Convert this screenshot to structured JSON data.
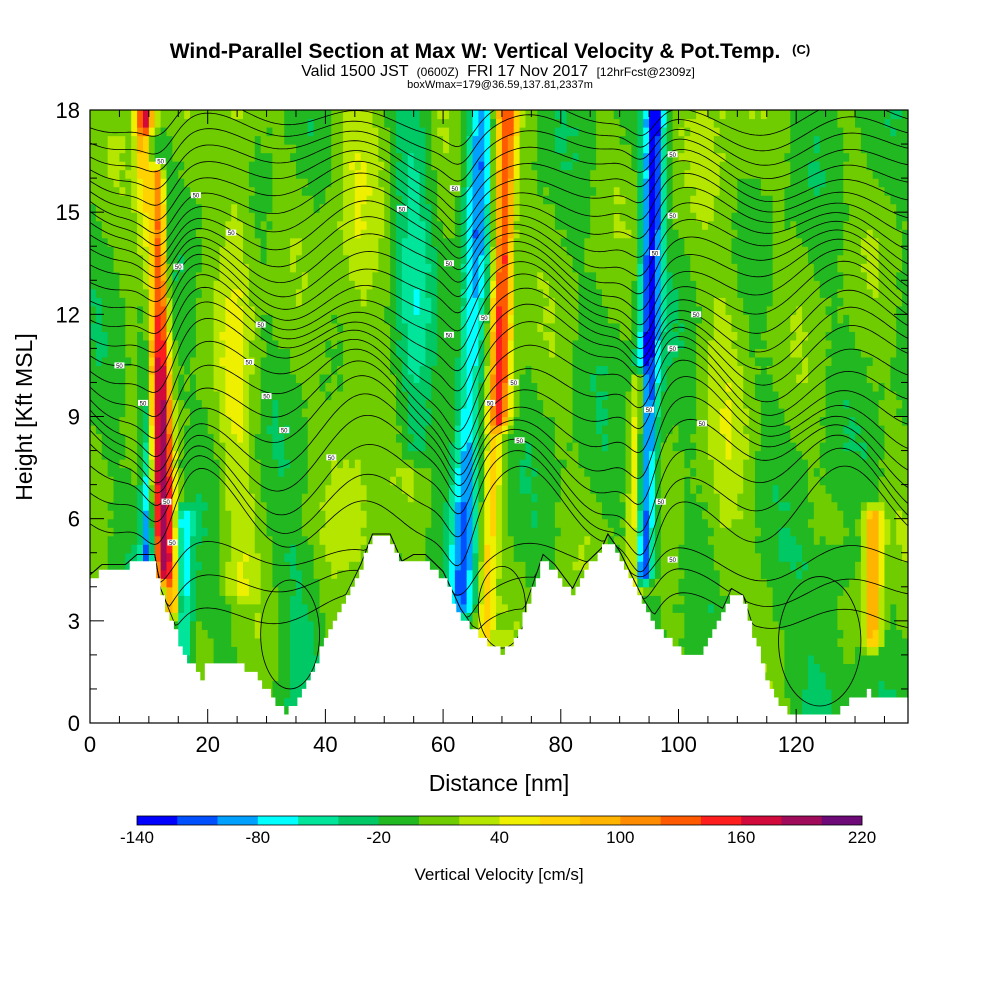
{
  "chart_data": {
    "type": "heatmap",
    "title": "Wind-Parallel Section at Max W: Vertical Velocity & Pot.Temp.",
    "title_tag": "(C)",
    "subtitle_prefix": "Valid 1500 JST",
    "subtitle_small_1": "(0600Z)",
    "subtitle_main": "FRI 17 Nov 2017",
    "subtitle_small_2": "[12hrFcst@2309z]",
    "subtitle2": "boxWmax=179@36.59,137.81,2337m",
    "xlabel": "Distance [nm]",
    "ylabel": "Height [Kft MSL]",
    "xlim": [
      0,
      139
    ],
    "ylim": [
      0,
      18
    ],
    "x_ticks": [
      "0",
      "20",
      "40",
      "60",
      "80",
      "100",
      "120"
    ],
    "x_tick_values": [
      0,
      20,
      40,
      60,
      80,
      100,
      120
    ],
    "y_ticks": [
      "0",
      "3",
      "6",
      "9",
      "12",
      "15",
      "18"
    ],
    "y_tick_values": [
      0,
      3,
      6,
      9,
      12,
      15,
      18
    ],
    "colorbar": {
      "title": "Vertical Velocity [cm/s]",
      "min": -140,
      "max": 220,
      "step": 20,
      "labels": [
        "-140",
        "-80",
        "-20",
        "40",
        "100",
        "160",
        "220"
      ],
      "label_values": [
        -140,
        -80,
        -20,
        40,
        100,
        160,
        220
      ],
      "colors": [
        "#0000ff",
        "#0050ff",
        "#00a0ff",
        "#00ffff",
        "#00e59a",
        "#00c864",
        "#22b822",
        "#6ecc00",
        "#b4e600",
        "#eef000",
        "#ffd200",
        "#ffb400",
        "#ff8c00",
        "#ff5a00",
        "#ff1e1e",
        "#d20a3c",
        "#a00a5a",
        "#6e0a78"
      ]
    },
    "background_w": 0,
    "w_features": [
      {
        "x": 12,
        "zmin": 4.5,
        "zmax": 18,
        "width": 1.5,
        "value": 170,
        "tilt": -0.2
      },
      {
        "x": 14,
        "zmin": 3.5,
        "zmax": 16,
        "width": 1.2,
        "value": 110,
        "tilt": -0.2
      },
      {
        "x": 10,
        "zmin": 4.5,
        "zmax": 17,
        "width": 1.3,
        "value": -120,
        "tilt": 0
      },
      {
        "x": 16,
        "zmin": 2,
        "zmax": 6,
        "width": 1.5,
        "value": -70,
        "tilt": 0
      },
      {
        "x": 63,
        "zmin": 3.5,
        "zmax": 18,
        "width": 2.2,
        "value": -90,
        "tilt": 0.25
      },
      {
        "x": 67,
        "zmin": 2.5,
        "zmax": 18,
        "width": 1.5,
        "value": 70,
        "tilt": 0.3
      },
      {
        "x": 70,
        "zmin": 9,
        "zmax": 18,
        "width": 1.8,
        "value": 90,
        "tilt": 0
      },
      {
        "x": 94,
        "zmin": 4.5,
        "zmax": 18,
        "width": 1.8,
        "value": -130,
        "tilt": 0.15
      },
      {
        "x": 92,
        "zmin": 3,
        "zmax": 10,
        "width": 1.2,
        "value": 90,
        "tilt": 0.2
      },
      {
        "x": 133,
        "zmin": 2.5,
        "zmax": 6,
        "width": 1.6,
        "value": 100,
        "tilt": 0
      },
      {
        "x": 25,
        "zmin": 4,
        "zmax": 18,
        "width": 3,
        "value": 35,
        "tilt": 0
      },
      {
        "x": 45,
        "zmin": 5,
        "zmax": 18,
        "width": 4,
        "value": 25,
        "tilt": 0
      },
      {
        "x": 55,
        "zmin": 8,
        "zmax": 18,
        "width": 3,
        "value": -40,
        "tilt": 0
      },
      {
        "x": 108,
        "zmin": 4,
        "zmax": 18,
        "width": 4,
        "value": 20,
        "tilt": 0
      },
      {
        "x": 125,
        "zmin": 0.5,
        "zmax": 5,
        "width": 5,
        "value": -25,
        "tilt": 0
      },
      {
        "x": 35,
        "zmin": 0.5,
        "zmax": 5,
        "width": 4,
        "value": -20,
        "tilt": 0
      }
    ],
    "terrain_kft": [
      [
        0,
        4.2
      ],
      [
        2,
        4.5
      ],
      [
        6,
        4.5
      ],
      [
        8,
        4.8
      ],
      [
        11,
        4.8
      ],
      [
        12,
        3.8
      ],
      [
        15,
        2.5
      ],
      [
        17,
        1.8
      ],
      [
        19,
        1.3
      ],
      [
        20,
        1.7
      ],
      [
        28,
        1.6
      ],
      [
        31,
        0.7
      ],
      [
        33,
        0.3
      ],
      [
        35,
        0.5
      ],
      [
        38,
        1.6
      ],
      [
        41,
        2.8
      ],
      [
        44,
        3.8
      ],
      [
        46,
        4.5
      ],
      [
        48,
        5.4
      ],
      [
        51,
        5.4
      ],
      [
        53,
        4.6
      ],
      [
        55,
        4.8
      ],
      [
        57,
        4.8
      ],
      [
        60,
        4.3
      ],
      [
        63,
        3.2
      ],
      [
        65,
        2.7
      ],
      [
        67,
        2.5
      ],
      [
        69,
        2.2
      ],
      [
        70,
        2.0
      ],
      [
        72,
        2.3
      ],
      [
        75,
        3.8
      ],
      [
        77,
        4.8
      ],
      [
        79,
        4.5
      ],
      [
        82,
        3.8
      ],
      [
        84,
        4.5
      ],
      [
        87,
        5.0
      ],
      [
        88,
        5.4
      ],
      [
        90,
        4.9
      ],
      [
        92,
        4.2
      ],
      [
        94,
        3.5
      ],
      [
        97,
        2.7
      ],
      [
        99,
        2.3
      ],
      [
        101,
        2.1
      ],
      [
        103,
        1.9
      ],
      [
        105,
        2.3
      ],
      [
        107,
        3.0
      ],
      [
        109,
        3.8
      ],
      [
        111,
        3.6
      ],
      [
        113,
        2.5
      ],
      [
        115,
        1.4
      ],
      [
        117,
        0.6
      ],
      [
        119,
        0.3
      ],
      [
        123,
        0.3
      ],
      [
        127,
        0.3
      ],
      [
        129,
        0.6
      ],
      [
        132,
        0.9
      ],
      [
        135,
        0.7
      ],
      [
        139,
        0.7
      ]
    ],
    "theta_contours": {
      "z_base_kft": [
        6.2,
        6.8,
        7.4,
        8.0,
        8.5,
        9.0,
        9.5,
        10.0,
        10.5,
        11.0,
        11.4,
        11.8,
        12.2,
        12.6,
        13.0,
        13.4,
        13.8,
        14.2,
        14.6,
        15.0,
        15.4,
        15.8,
        16.2,
        16.6,
        17.0,
        17.4,
        17.8
      ],
      "low_level_kft": [
        3.2,
        4.0,
        4.8
      ],
      "label_text": "50"
    }
  }
}
